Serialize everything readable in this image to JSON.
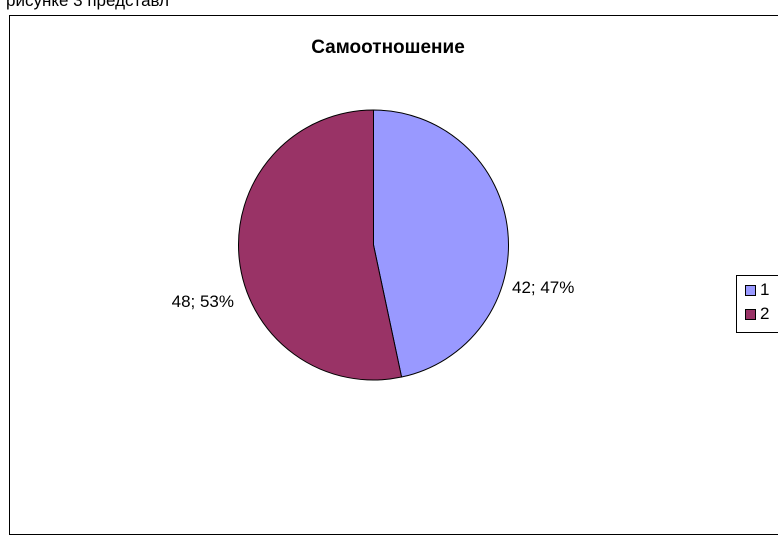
{
  "header_text": "...рисунке 3 представл...",
  "chart_data": {
    "type": "pie",
    "title": "Самоотношение",
    "categories": [
      "1",
      "2"
    ],
    "values": [
      42,
      48
    ],
    "data_labels": [
      "42; 47%",
      "48; 53%"
    ],
    "colors": [
      "#9999ff",
      "#993366"
    ],
    "legend_position": "right"
  }
}
